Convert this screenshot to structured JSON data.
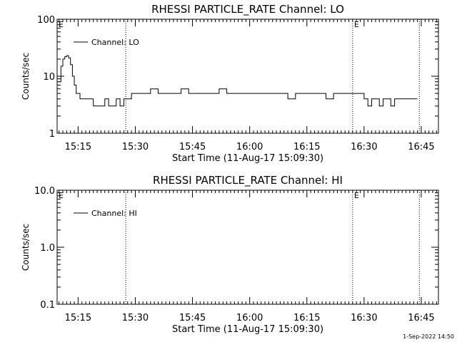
{
  "footer_timestamp": "1-Sep-2022 14:50",
  "chart_data": [
    {
      "type": "line",
      "title": "RHESSI PARTICLE_RATE Channel: LO",
      "xlabel": "Start Time (11-Aug-17 15:09:30)",
      "ylabel": "Counts/sec",
      "y_scale": "log",
      "ylim": [
        1,
        100
      ],
      "y_ticks": [
        1,
        10,
        100
      ],
      "y_tick_labels": [
        "1",
        "10",
        "100"
      ],
      "xlim": [
        "15:09:30",
        "16:49:30"
      ],
      "x_ticks": [
        "15:15",
        "15:30",
        "15:45",
        "16:00",
        "16:15",
        "16:30",
        "16:45"
      ],
      "legend": {
        "position": "top-left",
        "label": "Channel: LO"
      },
      "event_markers": [
        {
          "time": "15:27:30",
          "label": ""
        },
        {
          "time": "16:27:00",
          "label": "E"
        },
        {
          "time": "16:44:30",
          "label": ""
        }
      ],
      "corner_label": "E",
      "series": [
        {
          "name": "Channel: LO",
          "x": [
            "15:10:00",
            "15:10:30",
            "15:11:00",
            "15:11:30",
            "15:12:00",
            "15:12:30",
            "15:13:00",
            "15:13:30",
            "15:14:00",
            "15:14:30",
            "15:15:00",
            "15:15:30",
            "15:16:00",
            "15:17:00",
            "15:18:00",
            "15:19:00",
            "15:20:00",
            "15:21:00",
            "15:22:00",
            "15:23:00",
            "15:24:00",
            "15:25:00",
            "15:26:00",
            "15:27:00",
            "15:28:00",
            "15:29:00",
            "15:30:00",
            "15:32:00",
            "15:34:00",
            "15:36:00",
            "15:38:00",
            "15:40:00",
            "15:42:00",
            "15:44:00",
            "15:46:00",
            "15:48:00",
            "15:50:00",
            "15:52:00",
            "15:54:00",
            "15:56:00",
            "15:58:00",
            "16:00:00",
            "16:02:00",
            "16:04:00",
            "16:06:00",
            "16:08:00",
            "16:10:00",
            "16:12:00",
            "16:14:00",
            "16:16:00",
            "16:18:00",
            "16:20:00",
            "16:22:00",
            "16:24:00",
            "16:26:00",
            "16:28:00",
            "16:29:00",
            "16:30:00",
            "16:31:00",
            "16:32:00",
            "16:33:00",
            "16:34:00",
            "16:35:00",
            "16:36:00",
            "16:37:00",
            "16:38:00",
            "16:39:00",
            "16:40:00",
            "16:41:00",
            "16:42:00",
            "16:43:00",
            "16:44:00"
          ],
          "y": [
            8,
            15,
            20,
            22,
            23,
            21,
            16,
            10,
            7,
            5,
            5,
            4,
            4,
            4,
            4,
            3,
            3,
            3,
            4,
            3,
            3,
            4,
            3,
            4,
            4,
            5,
            5,
            5,
            6,
            5,
            5,
            5,
            6,
            5,
            5,
            5,
            5,
            6,
            5,
            5,
            5,
            5,
            5,
            5,
            5,
            5,
            4,
            5,
            5,
            5,
            5,
            4,
            5,
            5,
            5,
            5,
            5,
            4,
            3,
            4,
            4,
            3,
            4,
            4,
            3,
            4,
            4,
            4,
            4,
            4,
            4,
            4
          ]
        }
      ]
    },
    {
      "type": "line",
      "title": "RHESSI PARTICLE_RATE Channel: HI",
      "xlabel": "Start Time (11-Aug-17 15:09:30)",
      "ylabel": "Counts/sec",
      "y_scale": "log",
      "ylim": [
        0.1,
        10
      ],
      "y_ticks": [
        0.1,
        1,
        10
      ],
      "y_tick_labels": [
        "0.1",
        "1.0",
        "10.0"
      ],
      "xlim": [
        "15:09:30",
        "16:49:30"
      ],
      "x_ticks": [
        "15:15",
        "15:30",
        "15:45",
        "16:00",
        "16:15",
        "16:30",
        "16:45"
      ],
      "legend": {
        "position": "top-left",
        "label": "Channel: HI"
      },
      "event_markers": [
        {
          "time": "15:27:30",
          "label": ""
        },
        {
          "time": "16:27:00",
          "label": "E"
        },
        {
          "time": "16:44:30",
          "label": ""
        }
      ],
      "corner_label": "E",
      "series": [
        {
          "name": "Channel: HI",
          "x": [],
          "y": []
        }
      ]
    }
  ]
}
